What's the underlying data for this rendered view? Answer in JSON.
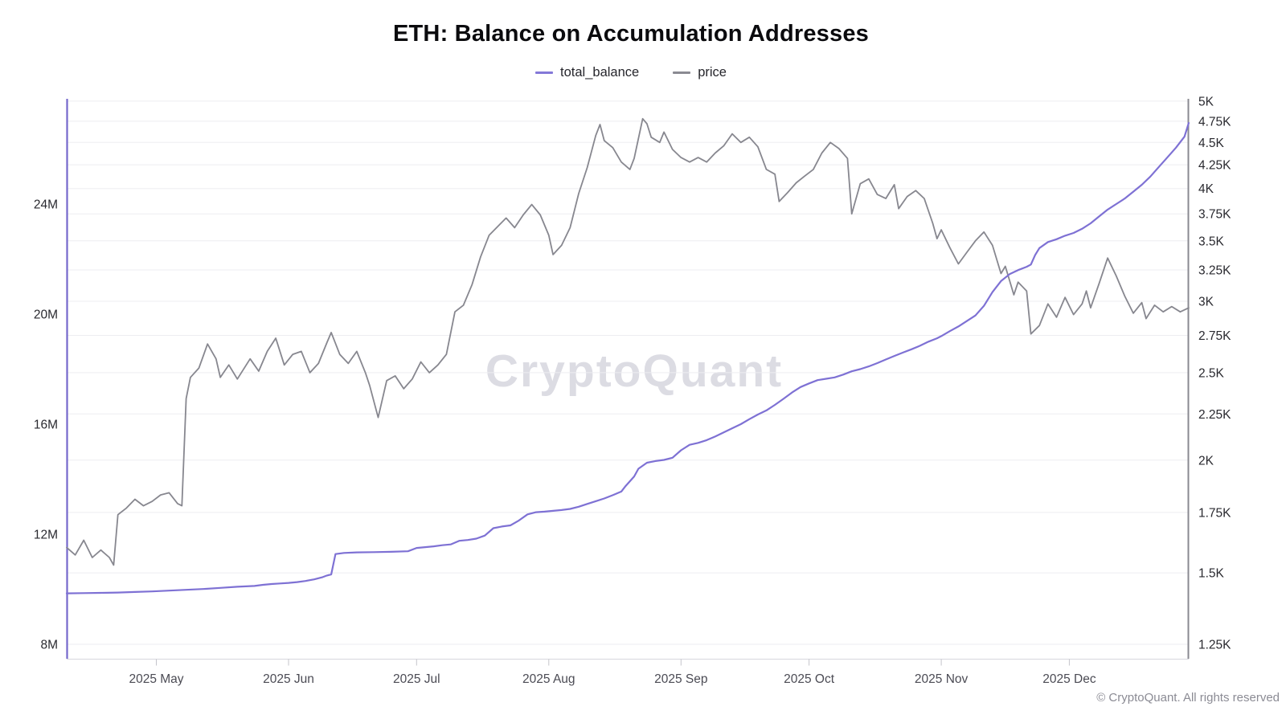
{
  "chart": {
    "title": "ETH: Balance on Accumulation Addresses",
    "watermark": "CryptoQuant",
    "copyright": "© CryptoQuant. All rights reserved"
  },
  "legend": {
    "items": [
      {
        "label": "total_balance",
        "color": "#8478d8"
      },
      {
        "label": "price",
        "color": "#8a8a92"
      }
    ]
  },
  "colors": {
    "balance_line": "#7e71d4",
    "price_line": "#87878f",
    "left_axis_line": "#7468cc",
    "right_axis_line": "#898991",
    "bottom_axis_line": "#d7d7dd",
    "tick_mark": "#c4c4cb",
    "gridline": "#ededf1",
    "axis_label": "#29292f",
    "x_label": "#4b4b54"
  },
  "chart_data": {
    "type": "line",
    "title": "ETH: Balance on Accumulation Addresses",
    "x_unit": "days since 2025-04-10",
    "x_domain": [
      0,
      263
    ],
    "grid": "horizontal-only",
    "legend_position": "top-center",
    "x_ticks": [
      {
        "label": "2025 May",
        "day": 21
      },
      {
        "label": "2025 Jun",
        "day": 52
      },
      {
        "label": "2025 Jul",
        "day": 82
      },
      {
        "label": "2025 Aug",
        "day": 113
      },
      {
        "label": "2025 Sep",
        "day": 144
      },
      {
        "label": "2025 Oct",
        "day": 174
      },
      {
        "label": "2025 Nov",
        "day": 205
      },
      {
        "label": "2025 Dec",
        "day": 235
      }
    ],
    "left_axis": {
      "scale": "linear",
      "unit": "M ETH",
      "range": [
        8,
        27.8
      ],
      "ticks": [
        {
          "v": 8,
          "label": "8M"
        },
        {
          "v": 12,
          "label": "12M"
        },
        {
          "v": 16,
          "label": "16M"
        },
        {
          "v": 20,
          "label": "20M"
        },
        {
          "v": 24,
          "label": "24M"
        }
      ]
    },
    "right_axis": {
      "scale": "log",
      "unit": "K USD",
      "range": [
        1.25,
        5.03
      ],
      "ticks": [
        {
          "v": 1.25,
          "label": "1.25K"
        },
        {
          "v": 1.5,
          "label": "1.5K"
        },
        {
          "v": 1.75,
          "label": "1.75K"
        },
        {
          "v": 2,
          "label": "2K"
        },
        {
          "v": 2.25,
          "label": "2.25K"
        },
        {
          "v": 2.5,
          "label": "2.5K"
        },
        {
          "v": 2.75,
          "label": "2.75K"
        },
        {
          "v": 3,
          "label": "3K"
        },
        {
          "v": 3.25,
          "label": "3.25K"
        },
        {
          "v": 3.5,
          "label": "3.5K"
        },
        {
          "v": 3.75,
          "label": "3.75K"
        },
        {
          "v": 4,
          "label": "4K"
        },
        {
          "v": 4.25,
          "label": "4.25K"
        },
        {
          "v": 4.5,
          "label": "4.5K"
        },
        {
          "v": 4.75,
          "label": "4.75K"
        },
        {
          "v": 5,
          "label": "5K"
        }
      ]
    },
    "series": [
      {
        "name": "price",
        "axis": "right",
        "color": "#87878f",
        "width": 1.8,
        "points": [
          [
            0,
            1.6
          ],
          [
            2,
            1.57
          ],
          [
            4,
            1.63
          ],
          [
            6,
            1.56
          ],
          [
            8,
            1.59
          ],
          [
            10,
            1.56
          ],
          [
            11,
            1.53
          ],
          [
            12,
            1.74
          ],
          [
            14,
            1.77
          ],
          [
            16,
            1.81
          ],
          [
            18,
            1.78
          ],
          [
            20,
            1.8
          ],
          [
            22,
            1.83
          ],
          [
            24,
            1.84
          ],
          [
            26,
            1.79
          ],
          [
            27,
            1.78
          ],
          [
            28,
            2.34
          ],
          [
            29,
            2.47
          ],
          [
            31,
            2.53
          ],
          [
            33,
            2.69
          ],
          [
            35,
            2.59
          ],
          [
            36,
            2.47
          ],
          [
            38,
            2.55
          ],
          [
            40,
            2.46
          ],
          [
            43,
            2.59
          ],
          [
            45,
            2.51
          ],
          [
            47,
            2.64
          ],
          [
            49,
            2.73
          ],
          [
            51,
            2.55
          ],
          [
            53,
            2.62
          ],
          [
            55,
            2.64
          ],
          [
            57,
            2.5
          ],
          [
            59,
            2.56
          ],
          [
            61,
            2.7
          ],
          [
            62,
            2.77
          ],
          [
            64,
            2.62
          ],
          [
            66,
            2.56
          ],
          [
            68,
            2.64
          ],
          [
            70,
            2.5
          ],
          [
            71,
            2.42
          ],
          [
            73,
            2.23
          ],
          [
            75,
            2.45
          ],
          [
            77,
            2.48
          ],
          [
            79,
            2.4
          ],
          [
            81,
            2.46
          ],
          [
            83,
            2.57
          ],
          [
            85,
            2.5
          ],
          [
            87,
            2.55
          ],
          [
            89,
            2.62
          ],
          [
            91,
            2.92
          ],
          [
            93,
            2.97
          ],
          [
            95,
            3.13
          ],
          [
            97,
            3.36
          ],
          [
            99,
            3.55
          ],
          [
            101,
            3.63
          ],
          [
            103,
            3.71
          ],
          [
            105,
            3.62
          ],
          [
            107,
            3.74
          ],
          [
            109,
            3.84
          ],
          [
            111,
            3.74
          ],
          [
            113,
            3.55
          ],
          [
            114,
            3.38
          ],
          [
            116,
            3.46
          ],
          [
            118,
            3.62
          ],
          [
            120,
            3.95
          ],
          [
            122,
            4.22
          ],
          [
            124,
            4.58
          ],
          [
            125,
            4.71
          ],
          [
            126,
            4.52
          ],
          [
            128,
            4.44
          ],
          [
            130,
            4.28
          ],
          [
            132,
            4.2
          ],
          [
            133,
            4.32
          ],
          [
            135,
            4.78
          ],
          [
            136,
            4.72
          ],
          [
            137,
            4.56
          ],
          [
            139,
            4.5
          ],
          [
            140,
            4.62
          ],
          [
            142,
            4.42
          ],
          [
            144,
            4.33
          ],
          [
            146,
            4.28
          ],
          [
            148,
            4.33
          ],
          [
            150,
            4.28
          ],
          [
            152,
            4.38
          ],
          [
            154,
            4.46
          ],
          [
            156,
            4.6
          ],
          [
            158,
            4.5
          ],
          [
            160,
            4.56
          ],
          [
            162,
            4.45
          ],
          [
            164,
            4.2
          ],
          [
            166,
            4.15
          ],
          [
            167,
            3.87
          ],
          [
            169,
            3.96
          ],
          [
            171,
            4.06
          ],
          [
            173,
            4.13
          ],
          [
            175,
            4.2
          ],
          [
            177,
            4.38
          ],
          [
            179,
            4.5
          ],
          [
            181,
            4.43
          ],
          [
            183,
            4.32
          ],
          [
            184,
            3.75
          ],
          [
            186,
            4.05
          ],
          [
            188,
            4.1
          ],
          [
            190,
            3.94
          ],
          [
            192,
            3.9
          ],
          [
            194,
            4.04
          ],
          [
            195,
            3.8
          ],
          [
            197,
            3.92
          ],
          [
            199,
            3.98
          ],
          [
            201,
            3.9
          ],
          [
            203,
            3.66
          ],
          [
            204,
            3.52
          ],
          [
            205,
            3.6
          ],
          [
            207,
            3.44
          ],
          [
            209,
            3.3
          ],
          [
            211,
            3.4
          ],
          [
            213,
            3.5
          ],
          [
            215,
            3.58
          ],
          [
            217,
            3.46
          ],
          [
            219,
            3.22
          ],
          [
            220,
            3.28
          ],
          [
            222,
            3.05
          ],
          [
            223,
            3.15
          ],
          [
            225,
            3.08
          ],
          [
            226,
            2.76
          ],
          [
            228,
            2.82
          ],
          [
            230,
            2.98
          ],
          [
            232,
            2.88
          ],
          [
            234,
            3.03
          ],
          [
            236,
            2.9
          ],
          [
            238,
            2.98
          ],
          [
            239,
            3.08
          ],
          [
            240,
            2.95
          ],
          [
            242,
            3.14
          ],
          [
            244,
            3.35
          ],
          [
            246,
            3.2
          ],
          [
            248,
            3.04
          ],
          [
            250,
            2.91
          ],
          [
            252,
            2.99
          ],
          [
            253,
            2.87
          ],
          [
            255,
            2.97
          ],
          [
            257,
            2.92
          ],
          [
            259,
            2.96
          ],
          [
            261,
            2.92
          ],
          [
            263,
            2.95
          ]
        ]
      },
      {
        "name": "total_balance",
        "axis": "left",
        "color": "#7e71d4",
        "width": 2.2,
        "points": [
          [
            0,
            9.85
          ],
          [
            4,
            9.86
          ],
          [
            8,
            9.87
          ],
          [
            12,
            9.88
          ],
          [
            16,
            9.9
          ],
          [
            20,
            9.92
          ],
          [
            24,
            9.95
          ],
          [
            28,
            9.98
          ],
          [
            32,
            10.01
          ],
          [
            36,
            10.05
          ],
          [
            40,
            10.09
          ],
          [
            44,
            10.12
          ],
          [
            46,
            10.16
          ],
          [
            48,
            10.19
          ],
          [
            50,
            10.21
          ],
          [
            52,
            10.23
          ],
          [
            54,
            10.26
          ],
          [
            56,
            10.3
          ],
          [
            58,
            10.36
          ],
          [
            60,
            10.44
          ],
          [
            61,
            10.5
          ],
          [
            62,
            10.54
          ],
          [
            63,
            11.28
          ],
          [
            65,
            11.32
          ],
          [
            68,
            11.34
          ],
          [
            72,
            11.35
          ],
          [
            76,
            11.36
          ],
          [
            80,
            11.38
          ],
          [
            82,
            11.5
          ],
          [
            84,
            11.53
          ],
          [
            86,
            11.56
          ],
          [
            88,
            11.6
          ],
          [
            90,
            11.63
          ],
          [
            92,
            11.76
          ],
          [
            94,
            11.79
          ],
          [
            96,
            11.84
          ],
          [
            98,
            11.95
          ],
          [
            100,
            12.22
          ],
          [
            102,
            12.28
          ],
          [
            104,
            12.32
          ],
          [
            106,
            12.5
          ],
          [
            108,
            12.72
          ],
          [
            110,
            12.8
          ],
          [
            112,
            12.82
          ],
          [
            114,
            12.85
          ],
          [
            116,
            12.88
          ],
          [
            118,
            12.92
          ],
          [
            120,
            13.0
          ],
          [
            122,
            13.1
          ],
          [
            124,
            13.2
          ],
          [
            126,
            13.3
          ],
          [
            128,
            13.42
          ],
          [
            130,
            13.55
          ],
          [
            131,
            13.75
          ],
          [
            133,
            14.1
          ],
          [
            134,
            14.38
          ],
          [
            136,
            14.6
          ],
          [
            138,
            14.66
          ],
          [
            140,
            14.7
          ],
          [
            142,
            14.78
          ],
          [
            144,
            15.05
          ],
          [
            146,
            15.25
          ],
          [
            148,
            15.32
          ],
          [
            150,
            15.42
          ],
          [
            152,
            15.55
          ],
          [
            154,
            15.7
          ],
          [
            156,
            15.85
          ],
          [
            158,
            16.0
          ],
          [
            160,
            16.18
          ],
          [
            162,
            16.35
          ],
          [
            164,
            16.5
          ],
          [
            166,
            16.7
          ],
          [
            168,
            16.92
          ],
          [
            170,
            17.15
          ],
          [
            172,
            17.35
          ],
          [
            174,
            17.48
          ],
          [
            176,
            17.6
          ],
          [
            178,
            17.65
          ],
          [
            180,
            17.7
          ],
          [
            182,
            17.8
          ],
          [
            184,
            17.92
          ],
          [
            186,
            18.0
          ],
          [
            188,
            18.1
          ],
          [
            190,
            18.22
          ],
          [
            192,
            18.35
          ],
          [
            194,
            18.48
          ],
          [
            196,
            18.6
          ],
          [
            198,
            18.72
          ],
          [
            200,
            18.85
          ],
          [
            202,
            19.0
          ],
          [
            204,
            19.12
          ],
          [
            205,
            19.2
          ],
          [
            207,
            19.38
          ],
          [
            209,
            19.55
          ],
          [
            211,
            19.75
          ],
          [
            213,
            19.95
          ],
          [
            215,
            20.3
          ],
          [
            217,
            20.8
          ],
          [
            219,
            21.2
          ],
          [
            221,
            21.45
          ],
          [
            223,
            21.6
          ],
          [
            225,
            21.72
          ],
          [
            226,
            21.8
          ],
          [
            227,
            22.15
          ],
          [
            228,
            22.4
          ],
          [
            230,
            22.62
          ],
          [
            232,
            22.72
          ],
          [
            234,
            22.85
          ],
          [
            236,
            22.95
          ],
          [
            238,
            23.1
          ],
          [
            240,
            23.3
          ],
          [
            242,
            23.55
          ],
          [
            244,
            23.8
          ],
          [
            246,
            24.0
          ],
          [
            248,
            24.2
          ],
          [
            250,
            24.45
          ],
          [
            252,
            24.7
          ],
          [
            254,
            25.0
          ],
          [
            256,
            25.35
          ],
          [
            258,
            25.7
          ],
          [
            260,
            26.05
          ],
          [
            262,
            26.45
          ],
          [
            263,
            26.95
          ]
        ]
      }
    ]
  }
}
